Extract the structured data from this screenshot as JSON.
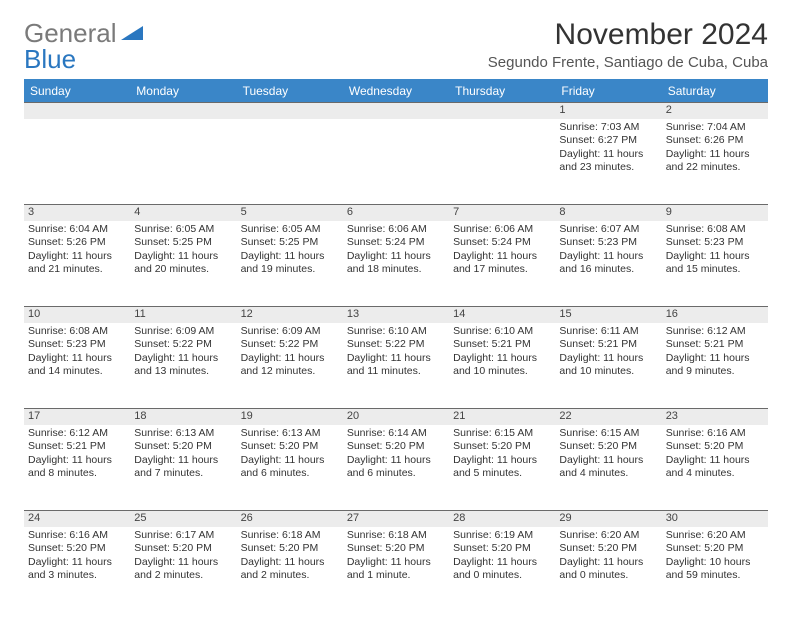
{
  "brand": {
    "gray": "General",
    "blue": "Blue"
  },
  "title": "November 2024",
  "subtitle": "Segundo Frente, Santiago de Cuba, Cuba",
  "colors": {
    "header_bg": "#3a86c8",
    "header_text": "#ffffff",
    "daynum_bg": "#ececec",
    "rule": "#6a6a6a",
    "logo_gray": "#7a7a7a",
    "logo_blue": "#2a77c0",
    "text": "#333333"
  },
  "weekdays": [
    "Sunday",
    "Monday",
    "Tuesday",
    "Wednesday",
    "Thursday",
    "Friday",
    "Saturday"
  ],
  "weeks": [
    [
      null,
      null,
      null,
      null,
      null,
      {
        "n": "1",
        "sr": "7:03 AM",
        "ss": "6:27 PM",
        "dl": "11 hours and 23 minutes."
      },
      {
        "n": "2",
        "sr": "7:04 AM",
        "ss": "6:26 PM",
        "dl": "11 hours and 22 minutes."
      }
    ],
    [
      {
        "n": "3",
        "sr": "6:04 AM",
        "ss": "5:26 PM",
        "dl": "11 hours and 21 minutes."
      },
      {
        "n": "4",
        "sr": "6:05 AM",
        "ss": "5:25 PM",
        "dl": "11 hours and 20 minutes."
      },
      {
        "n": "5",
        "sr": "6:05 AM",
        "ss": "5:25 PM",
        "dl": "11 hours and 19 minutes."
      },
      {
        "n": "6",
        "sr": "6:06 AM",
        "ss": "5:24 PM",
        "dl": "11 hours and 18 minutes."
      },
      {
        "n": "7",
        "sr": "6:06 AM",
        "ss": "5:24 PM",
        "dl": "11 hours and 17 minutes."
      },
      {
        "n": "8",
        "sr": "6:07 AM",
        "ss": "5:23 PM",
        "dl": "11 hours and 16 minutes."
      },
      {
        "n": "9",
        "sr": "6:08 AM",
        "ss": "5:23 PM",
        "dl": "11 hours and 15 minutes."
      }
    ],
    [
      {
        "n": "10",
        "sr": "6:08 AM",
        "ss": "5:23 PM",
        "dl": "11 hours and 14 minutes."
      },
      {
        "n": "11",
        "sr": "6:09 AM",
        "ss": "5:22 PM",
        "dl": "11 hours and 13 minutes."
      },
      {
        "n": "12",
        "sr": "6:09 AM",
        "ss": "5:22 PM",
        "dl": "11 hours and 12 minutes."
      },
      {
        "n": "13",
        "sr": "6:10 AM",
        "ss": "5:22 PM",
        "dl": "11 hours and 11 minutes."
      },
      {
        "n": "14",
        "sr": "6:10 AM",
        "ss": "5:21 PM",
        "dl": "11 hours and 10 minutes."
      },
      {
        "n": "15",
        "sr": "6:11 AM",
        "ss": "5:21 PM",
        "dl": "11 hours and 10 minutes."
      },
      {
        "n": "16",
        "sr": "6:12 AM",
        "ss": "5:21 PM",
        "dl": "11 hours and 9 minutes."
      }
    ],
    [
      {
        "n": "17",
        "sr": "6:12 AM",
        "ss": "5:21 PM",
        "dl": "11 hours and 8 minutes."
      },
      {
        "n": "18",
        "sr": "6:13 AM",
        "ss": "5:20 PM",
        "dl": "11 hours and 7 minutes."
      },
      {
        "n": "19",
        "sr": "6:13 AM",
        "ss": "5:20 PM",
        "dl": "11 hours and 6 minutes."
      },
      {
        "n": "20",
        "sr": "6:14 AM",
        "ss": "5:20 PM",
        "dl": "11 hours and 6 minutes."
      },
      {
        "n": "21",
        "sr": "6:15 AM",
        "ss": "5:20 PM",
        "dl": "11 hours and 5 minutes."
      },
      {
        "n": "22",
        "sr": "6:15 AM",
        "ss": "5:20 PM",
        "dl": "11 hours and 4 minutes."
      },
      {
        "n": "23",
        "sr": "6:16 AM",
        "ss": "5:20 PM",
        "dl": "11 hours and 4 minutes."
      }
    ],
    [
      {
        "n": "24",
        "sr": "6:16 AM",
        "ss": "5:20 PM",
        "dl": "11 hours and 3 minutes."
      },
      {
        "n": "25",
        "sr": "6:17 AM",
        "ss": "5:20 PM",
        "dl": "11 hours and 2 minutes."
      },
      {
        "n": "26",
        "sr": "6:18 AM",
        "ss": "5:20 PM",
        "dl": "11 hours and 2 minutes."
      },
      {
        "n": "27",
        "sr": "6:18 AM",
        "ss": "5:20 PM",
        "dl": "11 hours and 1 minute."
      },
      {
        "n": "28",
        "sr": "6:19 AM",
        "ss": "5:20 PM",
        "dl": "11 hours and 0 minutes."
      },
      {
        "n": "29",
        "sr": "6:20 AM",
        "ss": "5:20 PM",
        "dl": "11 hours and 0 minutes."
      },
      {
        "n": "30",
        "sr": "6:20 AM",
        "ss": "5:20 PM",
        "dl": "10 hours and 59 minutes."
      }
    ]
  ],
  "labels": {
    "sunrise": "Sunrise:",
    "sunset": "Sunset:",
    "daylight": "Daylight:"
  }
}
